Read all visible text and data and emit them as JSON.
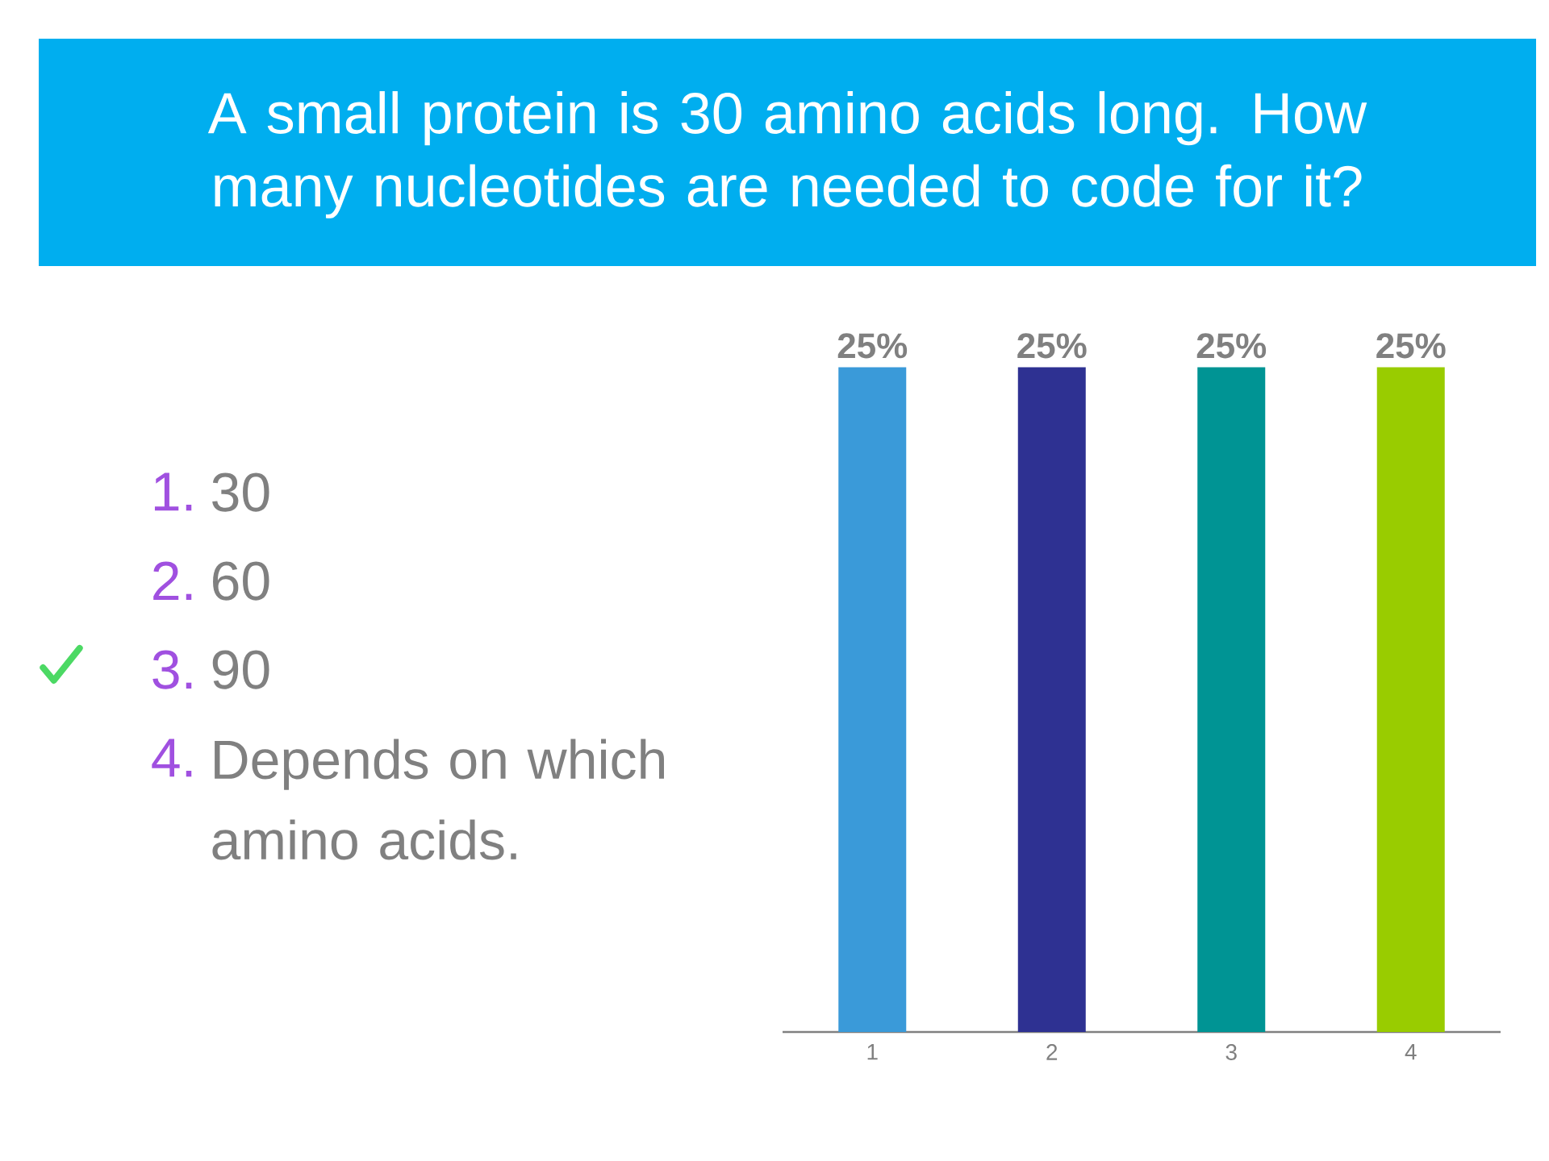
{
  "chart_data": {
    "type": "bar",
    "title": "A small protein is 30 amino acids long. How many nucleotides are needed to code for it?",
    "categories": [
      "1",
      "2",
      "3",
      "4"
    ],
    "values": [
      25,
      25,
      25,
      25
    ],
    "value_labels": [
      "25%",
      "25%",
      "25%",
      "25%"
    ],
    "colors": [
      "#3a9ad9",
      "#2e3192",
      "#009494",
      "#99cc00"
    ],
    "annotations": [
      "1.",
      "30",
      "2.",
      "60",
      "3.",
      "90",
      "4.",
      "Depends on which amino acids."
    ]
  }
}
